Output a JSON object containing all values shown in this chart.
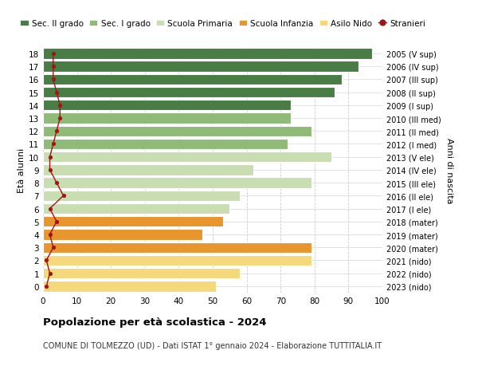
{
  "ages": [
    0,
    1,
    2,
    3,
    4,
    5,
    6,
    7,
    8,
    9,
    10,
    11,
    12,
    13,
    14,
    15,
    16,
    17,
    18
  ],
  "bar_values": [
    51,
    58,
    79,
    79,
    47,
    53,
    55,
    58,
    79,
    62,
    85,
    72,
    79,
    73,
    73,
    86,
    88,
    93,
    97
  ],
  "bar_colors": [
    "#f5d87a",
    "#f5d87a",
    "#f5d87a",
    "#e8952e",
    "#e8952e",
    "#e8952e",
    "#c8ddb0",
    "#c8ddb0",
    "#c8ddb0",
    "#c8ddb0",
    "#c8ddb0",
    "#8fba78",
    "#8fba78",
    "#8fba78",
    "#4a7c45",
    "#4a7c45",
    "#4a7c45",
    "#4a7c45",
    "#4a7c45"
  ],
  "right_labels": [
    "2023 (nido)",
    "2022 (nido)",
    "2021 (nido)",
    "2020 (mater)",
    "2019 (mater)",
    "2018 (mater)",
    "2017 (I ele)",
    "2016 (II ele)",
    "2015 (III ele)",
    "2014 (IV ele)",
    "2013 (V ele)",
    "2012 (I med)",
    "2011 (II med)",
    "2010 (III med)",
    "2009 (I sup)",
    "2008 (II sup)",
    "2007 (III sup)",
    "2006 (IV sup)",
    "2005 (V sup)"
  ],
  "stranieri": [
    1,
    2,
    1,
    3,
    2,
    4,
    2,
    6,
    4,
    2,
    2,
    3,
    4,
    5,
    5,
    4,
    3,
    3,
    3
  ],
  "legend_labels": [
    "Sec. II grado",
    "Sec. I grado",
    "Scuola Primaria",
    "Scuola Infanzia",
    "Asilo Nido",
    "Stranieri"
  ],
  "legend_colors": [
    "#4a7c45",
    "#8fba78",
    "#c8ddb0",
    "#e8952e",
    "#f5d87a",
    "#a31515"
  ],
  "ylabel_left": "Età alunni",
  "ylabel_right": "Anni di nascita",
  "xlim": [
    0,
    100
  ],
  "xticks": [
    0,
    10,
    20,
    30,
    40,
    50,
    60,
    70,
    80,
    90,
    100
  ],
  "title": "Popolazione per età scolastica - 2024",
  "subtitle": "COMUNE DI TOLMEZZO (UD) - Dati ISTAT 1° gennaio 2024 - Elaborazione TUTTITALIA.IT",
  "bg_plot": "#ffffff",
  "bg_fig": "#ffffff",
  "grid_color": "#cccccc"
}
